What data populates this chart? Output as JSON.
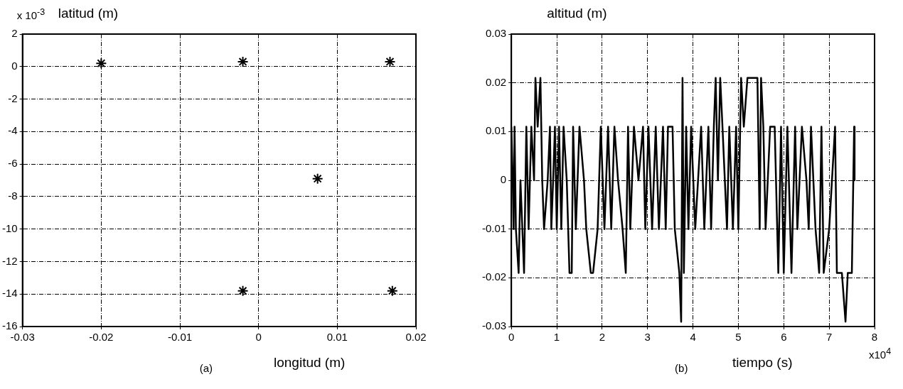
{
  "chart_data": [
    {
      "type": "scatter",
      "xlabel": "longitud (m)",
      "ylabel": "latitud (m)",
      "annotations": [
        "x 10$^{-3}$",
        "(a)"
      ],
      "series": [
        {
          "color": "#000000",
          "x": [
            -0.02,
            -0.002,
            0.0167,
            0.0075,
            -0.002,
            0.017
          ],
          "values": [
            0.2,
            0.3,
            0.3,
            -6.9,
            -13.8,
            -13.8
          ]
        }
      ],
      "xlim": [
        -0.03,
        0.02
      ],
      "xticks": [
        -0.03,
        -0.02,
        -0.01,
        0,
        0.01,
        0.02
      ],
      "ylim": [
        -16,
        2
      ],
      "yticks": [
        -16,
        -14,
        -12,
        -10,
        -8,
        -6,
        -4,
        -2,
        0,
        2
      ],
      "grid": true,
      "marker": "cross"
    },
    {
      "type": "line",
      "xlabel": "tiempo (s)",
      "ylabel": "altitud (m)",
      "annotations": [
        "x10$^{4}$",
        "(b)"
      ],
      "series": [
        {
          "color": "#000000",
          "x": [
            0,
            0.03,
            0.05,
            0.07,
            0.1,
            0.16,
            0.2,
            0.28,
            0.33,
            0.38,
            0.44,
            0.5,
            0.53,
            0.58,
            0.64,
            0.68,
            0.72,
            0.8,
            0.85,
            0.88,
            0.92,
            0.96,
            1.0,
            1.05,
            1.1,
            1.15,
            1.22,
            1.28,
            1.33,
            1.36,
            1.42,
            1.5,
            1.6,
            1.65,
            1.75,
            1.8,
            1.9,
            1.97,
            2.05,
            2.13,
            2.2,
            2.27,
            2.35,
            2.45,
            2.52,
            2.57,
            2.62,
            2.7,
            2.8,
            2.9,
            2.95,
            3.02,
            3.1,
            3.18,
            3.25,
            3.34,
            3.4,
            3.45,
            3.55,
            3.6,
            3.7,
            3.74,
            3.77,
            3.8,
            3.85,
            3.9,
            3.96,
            4.05,
            4.18,
            4.25,
            4.34,
            4.4,
            4.46,
            4.5,
            4.55,
            4.6,
            4.65,
            4.75,
            4.8,
            4.88,
            4.95,
            5.0,
            5.06,
            5.12,
            5.2,
            5.3,
            5.42,
            5.47,
            5.5,
            5.55,
            5.6,
            5.7,
            5.8,
            5.88,
            5.94,
            6.0,
            6.08,
            6.17,
            6.25,
            6.3,
            6.4,
            6.5,
            6.55,
            6.6,
            6.7,
            6.78,
            6.83,
            6.88,
            7.0,
            7.13,
            7.17,
            7.28,
            7.36,
            7.41,
            7.5,
            7.55,
            7.56
          ],
          "values": [
            0.011,
            0,
            -0.01,
            0.011,
            -0.01,
            -0.019,
            0,
            -0.019,
            0.011,
            -0.01,
            0.011,
            0,
            0.021,
            0.011,
            0.021,
            0,
            -0.01,
            0,
            0.011,
            -0.01,
            0,
            0.011,
            -0.01,
            0.011,
            -0.01,
            0.011,
            0,
            -0.019,
            -0.019,
            0.011,
            -0.01,
            0.011,
            0,
            -0.01,
            -0.019,
            -0.019,
            -0.01,
            0.011,
            -0.01,
            0.011,
            -0.01,
            0.011,
            0,
            -0.01,
            -0.019,
            0.011,
            -0.01,
            0.011,
            0,
            0.011,
            -0.01,
            0.011,
            -0.01,
            0.011,
            -0.01,
            0.011,
            -0.01,
            0.011,
            0.011,
            -0.01,
            -0.019,
            -0.029,
            0.021,
            -0.019,
            0.011,
            -0.01,
            0.011,
            -0.01,
            0.011,
            -0.01,
            0.011,
            -0.01,
            0.011,
            0.021,
            0,
            0.021,
            0.011,
            -0.01,
            0.011,
            -0.01,
            0.011,
            -0.01,
            0.021,
            0.011,
            0.021,
            0.021,
            0.021,
            -0.01,
            0.021,
            0.011,
            -0.01,
            0.011,
            0.011,
            -0.019,
            0.011,
            -0.019,
            0.011,
            -0.019,
            0.011,
            -0.01,
            0.011,
            0,
            -0.01,
            0.011,
            -0.01,
            -0.019,
            0.011,
            -0.019,
            -0.01,
            0.011,
            -0.019,
            -0.019,
            -0.029,
            -0.019,
            -0.019,
            0.011,
            0
          ]
        }
      ],
      "xlim": [
        0,
        8
      ],
      "xticks": [
        0,
        1,
        2,
        3,
        4,
        5,
        6,
        7,
        8
      ],
      "ylim": [
        -0.03,
        0.03
      ],
      "yticks": [
        -0.03,
        -0.02,
        -0.01,
        0,
        0.01,
        0.02,
        0.03
      ],
      "grid": true,
      "marker": "none",
      "line_style": "solid"
    }
  ]
}
